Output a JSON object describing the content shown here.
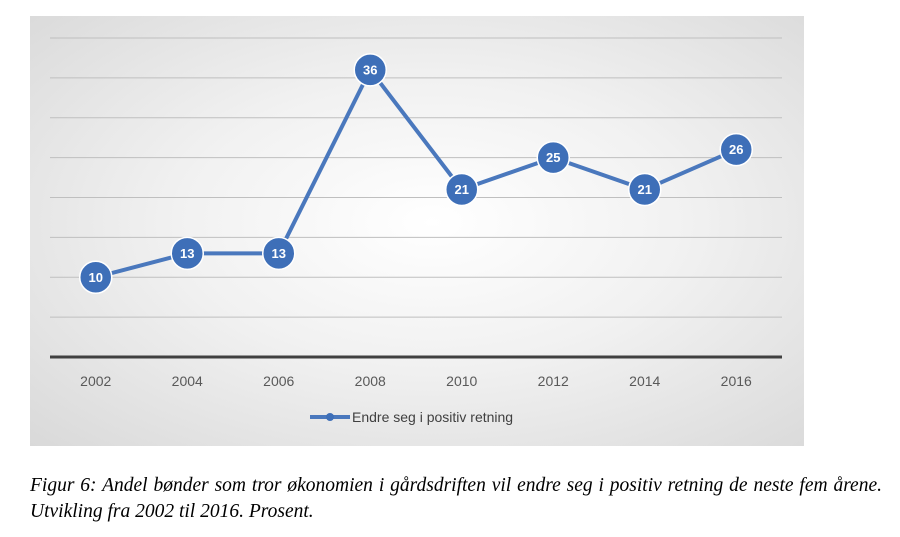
{
  "chart_data": {
    "type": "line",
    "categories": [
      "2002",
      "2004",
      "2006",
      "2008",
      "2010",
      "2012",
      "2014",
      "2016"
    ],
    "series": [
      {
        "name": "Endre seg i positiv retning",
        "values": [
          10,
          13,
          13,
          36,
          21,
          25,
          21,
          26
        ]
      }
    ],
    "ylim": [
      0,
      40
    ],
    "y_gridlines": [
      5,
      10,
      15,
      20,
      25,
      30,
      35,
      40
    ],
    "y_tick_labels_shown": false,
    "data_labels": true,
    "legend_position": "bottom",
    "grid": true,
    "colors": {
      "series": "#4a78bd",
      "marker_fill": "#3e6fb8",
      "gridline": "#bfbfbf",
      "axis": "#404040"
    }
  },
  "caption": "Figur 6: Andel bønder som tror økonomien i gårdsdriften vil endre seg i positiv retning de neste fem årene. Utvikling fra 2002 til 2016. Prosent."
}
